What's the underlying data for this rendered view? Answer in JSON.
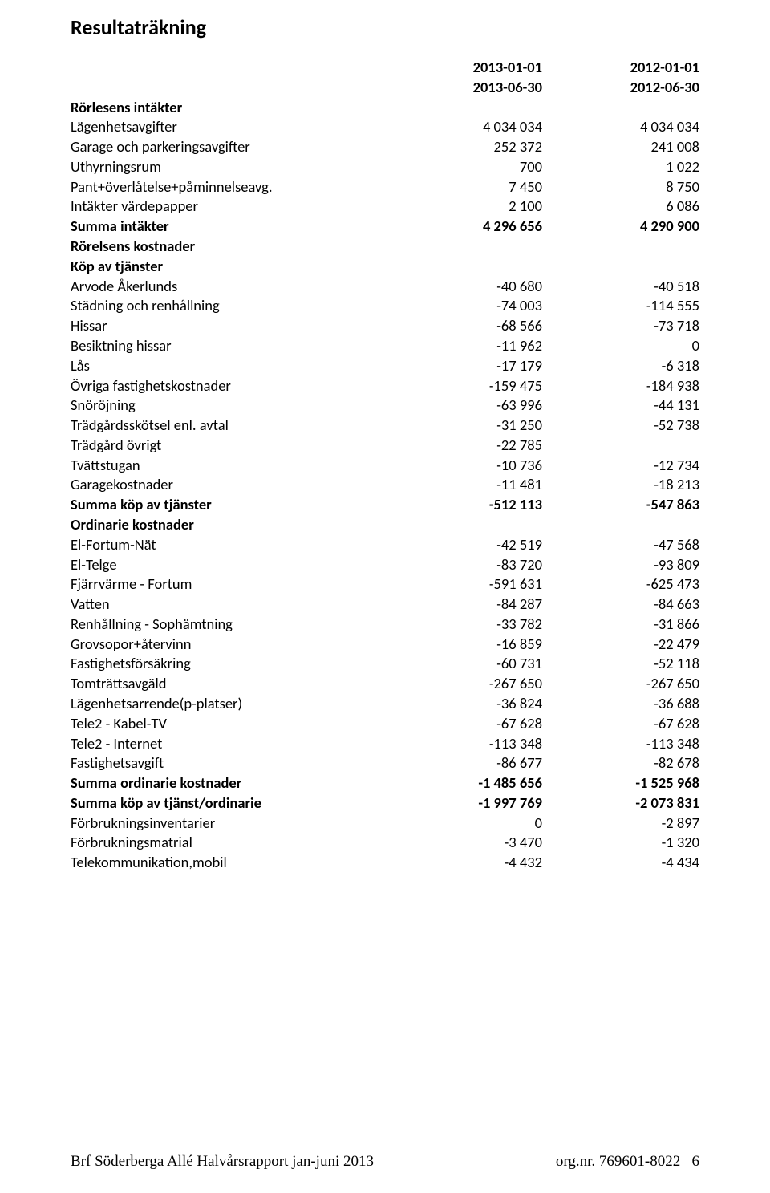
{
  "title": "Resultaträkning",
  "periods": {
    "start1": "2013-01-01",
    "start2": "2012-01-01",
    "end1": "2013-06-30",
    "end2": "2012-06-30"
  },
  "sec_rorlesens_intakter": "Rörlesens intäkter",
  "r_lagenhetsavgifter": {
    "label": "Lägenhetsavgifter",
    "c1": "4 034 034",
    "c2": "4 034 034"
  },
  "r_garage": {
    "label": "Garage och parkeringsavgifter",
    "c1": "252 372",
    "c2": "241 008"
  },
  "r_uthyrningsrum": {
    "label": "Uthyrningsrum",
    "c1": "700",
    "c2": "1 022"
  },
  "r_pant": {
    "label": "Pant+överlåtelse+påminnelseavg.",
    "c1": "7 450",
    "c2": "8 750"
  },
  "r_vardepapper": {
    "label": "Intäkter värdepapper",
    "c1": "2 100",
    "c2": "6 086"
  },
  "r_summa_intakter": {
    "label": "Summa intäkter",
    "c1": "4 296 656",
    "c2": "4 290 900"
  },
  "sec_rorelsens_kostnader": "Rörelsens kostnader",
  "sec_kop_av_tjanster": "Köp av tjänster",
  "r_arvode": {
    "label": "Arvode Åkerlunds",
    "c1": "-40 680",
    "c2": "-40 518"
  },
  "r_stadning": {
    "label": "Städning och renhållning",
    "c1": "-74 003",
    "c2": "-114 555"
  },
  "r_hissar": {
    "label": "Hissar",
    "c1": "-68 566",
    "c2": "-73 718"
  },
  "r_besiktning": {
    "label": "Besiktning hissar",
    "c1": "-11 962",
    "c2": "0"
  },
  "r_las": {
    "label": "Lås",
    "c1": "-17 179",
    "c2": "-6 318"
  },
  "r_ovriga_fast": {
    "label": "Övriga fastighetskostnader",
    "c1": "-159 475",
    "c2": "-184 938"
  },
  "r_snorojning": {
    "label": "Snöröjning",
    "c1": "-63 996",
    "c2": "-44 131"
  },
  "r_tradgard_avtal": {
    "label": "Trädgårdsskötsel enl. avtal",
    "c1": "-31 250",
    "c2": "-52 738"
  },
  "r_tradgard_ovrigt": {
    "label": "Trädgård övrigt",
    "c1": "-22 785",
    "c2": ""
  },
  "r_tvattstugan": {
    "label": "Tvättstugan",
    "c1": "-10 736",
    "c2": "-12 734"
  },
  "r_garagekostnader": {
    "label": "Garagekostnader",
    "c1": "-11 481",
    "c2": "-18 213"
  },
  "r_summa_kop": {
    "label": "Summa köp av tjänster",
    "c1": "-512 113",
    "c2": "-547 863"
  },
  "sec_ordinarie": "Ordinarie kostnader",
  "r_el_fortum_nat": {
    "label": "El-Fortum-Nät",
    "c1": "-42 519",
    "c2": "-47 568"
  },
  "r_el_telge": {
    "label": "El-Telge",
    "c1": "-83 720",
    "c2": "-93 809"
  },
  "r_fjarrvarme": {
    "label": "Fjärrvärme - Fortum",
    "c1": "-591 631",
    "c2": "-625 473"
  },
  "r_vatten": {
    "label": "Vatten",
    "c1": "-84 287",
    "c2": "-84 663"
  },
  "r_renhallning": {
    "label": "Renhållning - Sophämtning",
    "c1": "-33 782",
    "c2": "-31 866"
  },
  "r_grovsopor": {
    "label": "Grovsopor+återvinn",
    "c1": "-16 859",
    "c2": "-22 479"
  },
  "r_forsakring": {
    "label": "Fastighetsförsäkring",
    "c1": "-60 731",
    "c2": "-52 118"
  },
  "r_tomtratt": {
    "label": "Tomträttsavgäld",
    "c1": "-267 650",
    "c2": "-267 650"
  },
  "r_lagenhetsarrende": {
    "label": "Lägenhetsarrende(p-platser)",
    "c1": "-36 824",
    "c2": "-36 688"
  },
  "r_tele2_tv": {
    "label": "Tele2 - Kabel-TV",
    "c1": "-67 628",
    "c2": "-67 628"
  },
  "r_tele2_internet": {
    "label": "Tele2 - Internet",
    "c1": "-113 348",
    "c2": "-113 348"
  },
  "r_fastighetsavgift": {
    "label": "Fastighetsavgift",
    "c1": "-86 677",
    "c2": "-82 678"
  },
  "r_summa_ordinarie": {
    "label": "Summa ordinarie kostnader",
    "c1": "-1 485 656",
    "c2": "-1 525 968"
  },
  "r_summa_tjanst_ordinarie": {
    "label": "Summa köp av tjänst/ordinarie",
    "c1": "-1 997 769",
    "c2": "-2 073 831"
  },
  "r_forbr_inv": {
    "label": "Förbrukningsinventarier",
    "c1": "0",
    "c2": "-2 897"
  },
  "r_forbr_mat": {
    "label": "Förbrukningsmatrial",
    "c1": "-3 470",
    "c2": "-1 320"
  },
  "r_telekom": {
    "label": "Telekommunikation,mobil",
    "c1": "-4 432",
    "c2": "-4 434"
  },
  "footer": {
    "left": "Brf Söderberga Allé Halvårsrapport jan-juni 2013",
    "right_label": "org.nr. 769601-8022",
    "page": "6"
  }
}
